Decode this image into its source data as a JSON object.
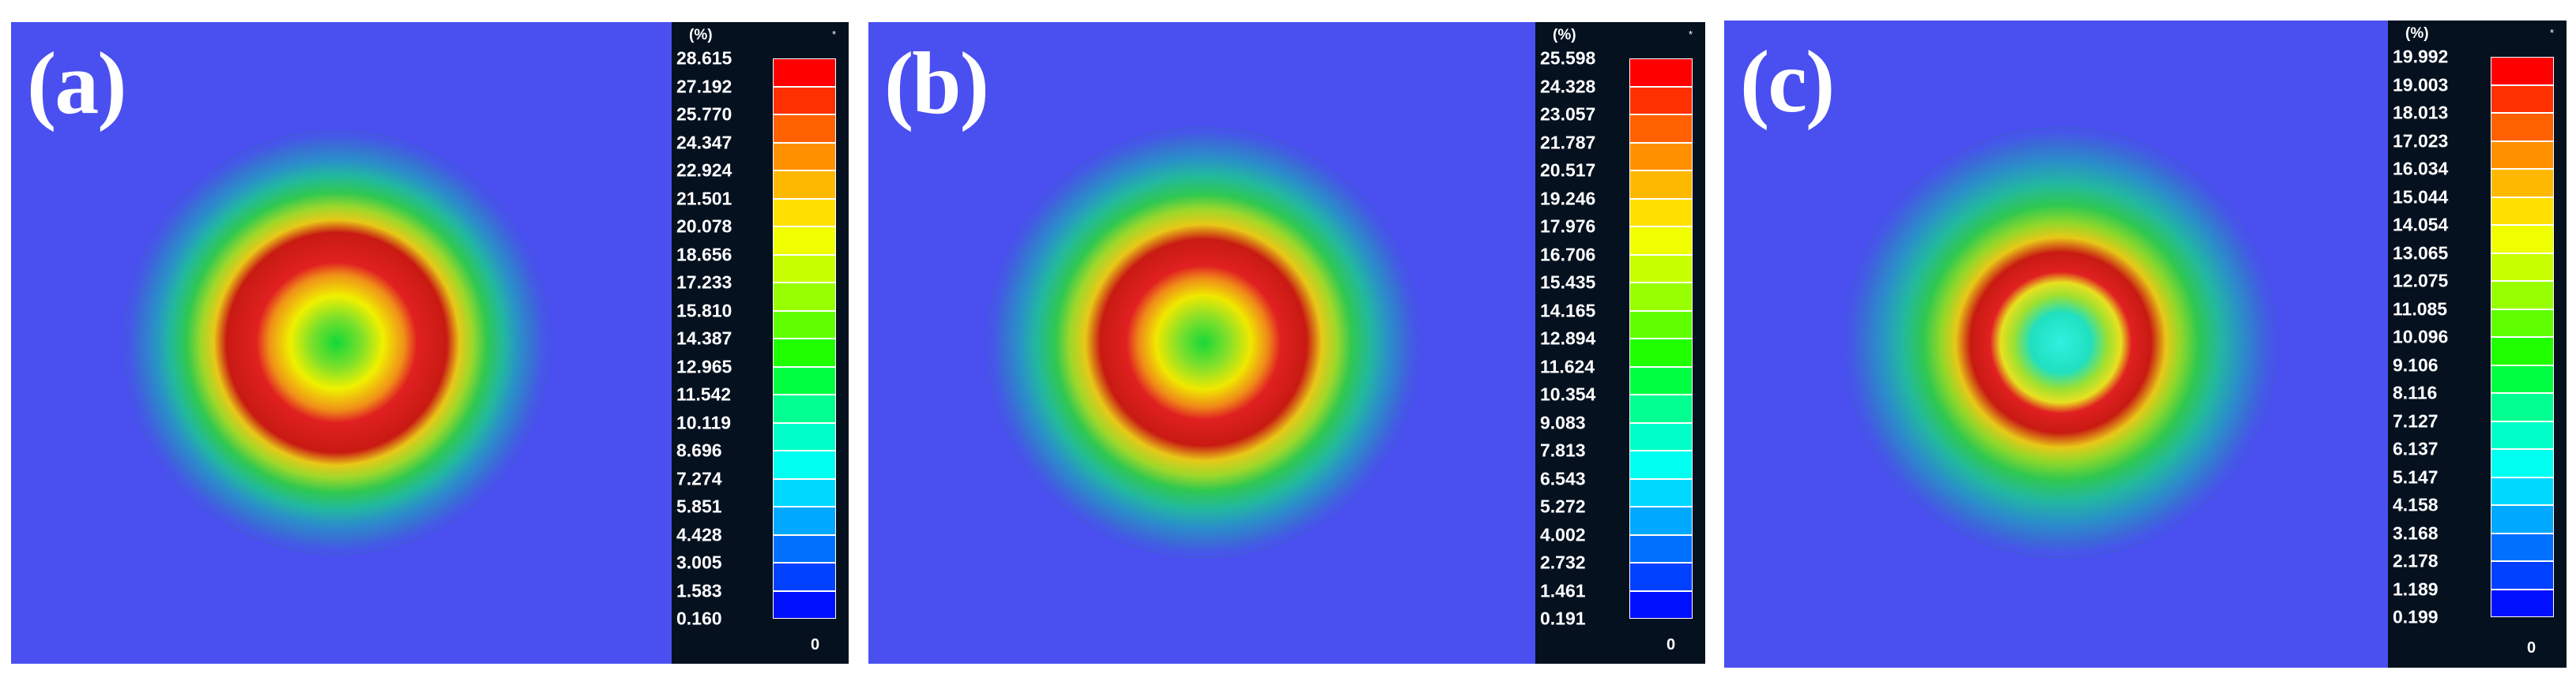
{
  "chart_data": [
    {
      "type": "heatmap",
      "panel_label": "(a)",
      "unit": "(%)",
      "corner_mark": "*",
      "zero_label": "0",
      "ticks": [
        "28.615",
        "27.192",
        "25.770",
        "24.347",
        "22.924",
        "21.501",
        "20.078",
        "18.656",
        "17.233",
        "15.810",
        "14.387",
        "12.965",
        "11.542",
        "10.119",
        "8.696",
        "7.274",
        "5.851",
        "4.428",
        "3.005",
        "1.583",
        "0.160"
      ],
      "colors": [
        "#ff0000",
        "#ff3000",
        "#ff6000",
        "#ff9000",
        "#ffb800",
        "#ffe000",
        "#f0ff00",
        "#c8ff00",
        "#98ff00",
        "#60ff00",
        "#20ff00",
        "#00ff40",
        "#00ff90",
        "#00ffc8",
        "#00fff0",
        "#00d8ff",
        "#00a8ff",
        "#0070ff",
        "#0040ff",
        "#0010ff"
      ],
      "pattern": "concentric rings: red peak ring around a yellow-green center"
    },
    {
      "type": "heatmap",
      "panel_label": "(b)",
      "unit": "(%)",
      "corner_mark": "*",
      "zero_label": "0",
      "ticks": [
        "25.598",
        "24.328",
        "23.057",
        "21.787",
        "20.517",
        "19.246",
        "17.976",
        "16.706",
        "15.435",
        "14.165",
        "12.894",
        "11.624",
        "10.354",
        "9.083",
        "7.813",
        "6.543",
        "5.272",
        "4.002",
        "2.732",
        "1.461",
        "0.191"
      ],
      "colors": [
        "#ff0000",
        "#ff3000",
        "#ff6000",
        "#ff9000",
        "#ffb800",
        "#ffe000",
        "#f0ff00",
        "#c8ff00",
        "#98ff00",
        "#60ff00",
        "#20ff00",
        "#00ff40",
        "#00ff90",
        "#00ffc8",
        "#00fff0",
        "#00d8ff",
        "#00a8ff",
        "#0070ff",
        "#0040ff",
        "#0010ff"
      ],
      "pattern": "concentric rings: red peak ring around a yellow-green center"
    },
    {
      "type": "heatmap",
      "panel_label": "(c)",
      "unit": "(%)",
      "corner_mark": "*",
      "zero_label": "0",
      "ticks": [
        "19.992",
        "19.003",
        "18.013",
        "17.023",
        "16.034",
        "15.044",
        "14.054",
        "13.065",
        "12.075",
        "11.085",
        "10.096",
        "9.106",
        "8.116",
        "7.127",
        "6.137",
        "5.147",
        "4.158",
        "3.168",
        "2.178",
        "1.189",
        "0.199"
      ],
      "colors": [
        "#ff0000",
        "#ff3000",
        "#ff6000",
        "#ff9000",
        "#ffb800",
        "#ffe000",
        "#f0ff00",
        "#c8ff00",
        "#98ff00",
        "#60ff00",
        "#20ff00",
        "#00ff40",
        "#00ff90",
        "#00ffc8",
        "#00fff0",
        "#00d8ff",
        "#00a8ff",
        "#0070ff",
        "#0040ff",
        "#0010ff"
      ],
      "pattern": "square-ish red ring around a cyan center"
    }
  ]
}
